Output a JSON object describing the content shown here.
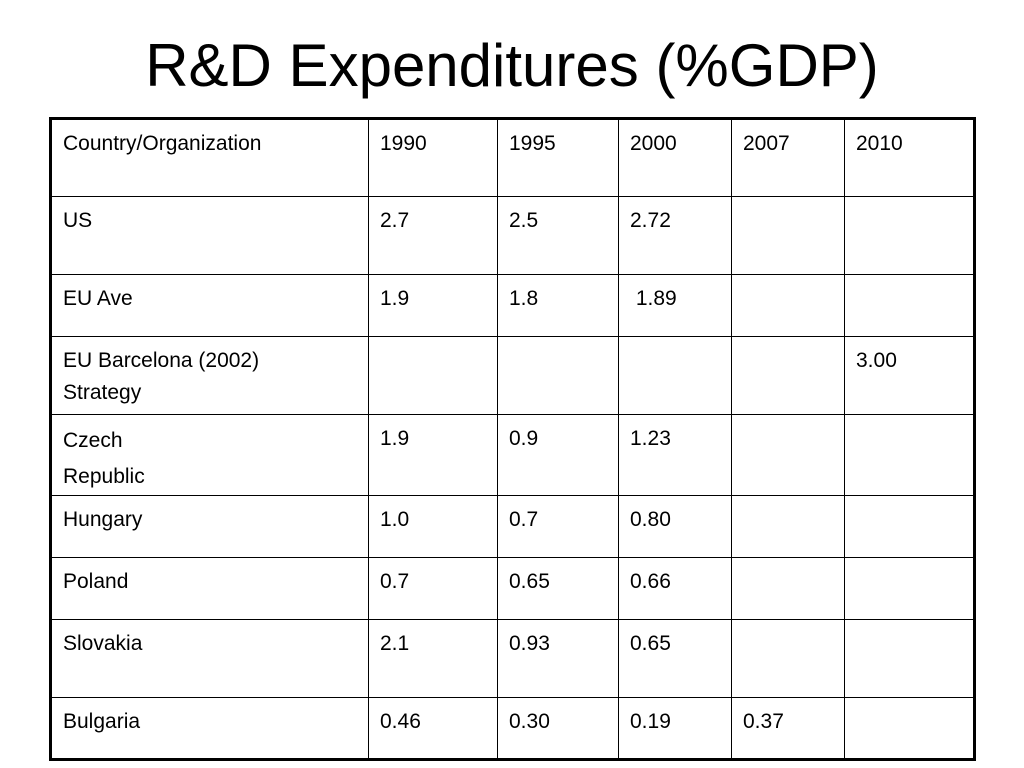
{
  "slide": {
    "title": "R&D Expenditures (%GDP)"
  },
  "table": {
    "headers": [
      "Country/Organization",
      "1990",
      "1995",
      "2000",
      "2007",
      "2010"
    ],
    "rows": [
      {
        "name": "US",
        "values": [
          "2.7",
          "2.5",
          "2.72",
          "",
          ""
        ]
      },
      {
        "name": "EU Ave",
        "values": [
          "1.9",
          "1.8",
          " 1.89",
          "",
          ""
        ]
      },
      {
        "name_lines": [
          "EU Barcelona (2002)",
          "Strategy"
        ],
        "values": [
          "",
          "",
          "",
          "",
          "3.00"
        ]
      },
      {
        "name_lines": [
          "Czech",
          "Republic"
        ],
        "values": [
          "1.9",
          "0.9",
          "1.23",
          "",
          ""
        ]
      },
      {
        "name": "Hungary",
        "values": [
          "1.0",
          "0.7",
          "0.80",
          "",
          ""
        ]
      },
      {
        "name": "Poland",
        "values": [
          "0.7",
          "0.65",
          "0.66",
          "",
          ""
        ]
      },
      {
        "name": "Slovakia",
        "values": [
          "2.1",
          "0.93",
          "0.65",
          "",
          ""
        ]
      },
      {
        "name": "Bulgaria",
        "values": [
          "0.46",
          "0.30",
          "0.19",
          "0.37",
          ""
        ]
      }
    ]
  }
}
